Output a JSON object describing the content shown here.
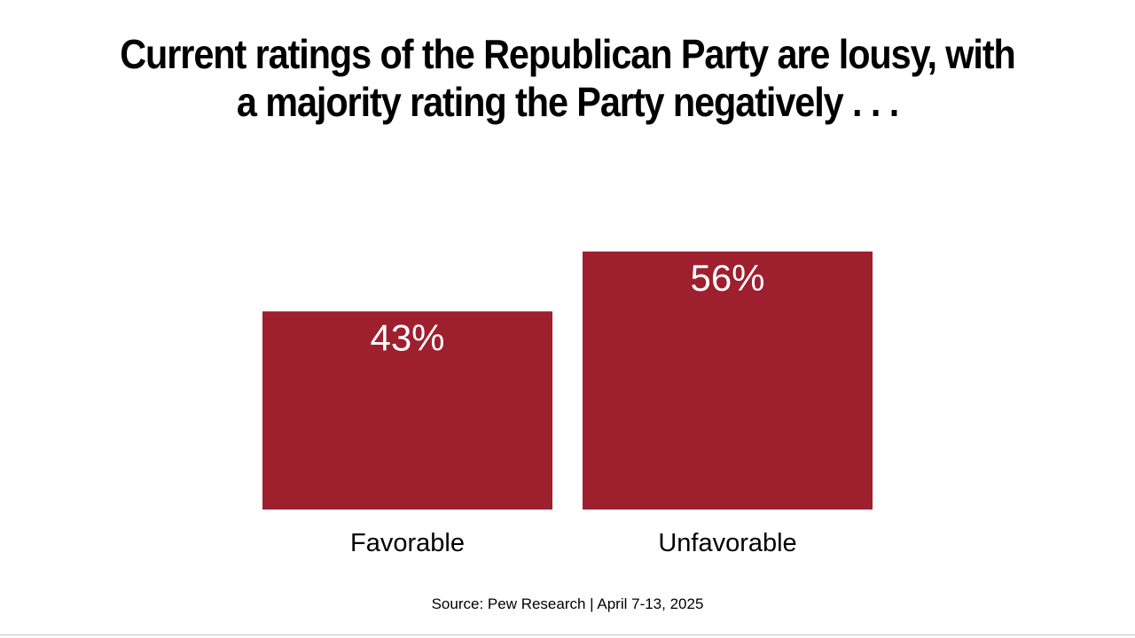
{
  "colors": {
    "bar": "#9e1f2e",
    "value_text": "#ffffff",
    "label_text": "#000000"
  },
  "chart_data": {
    "type": "bar",
    "title": "Current ratings of the Republican Party are lousy, with a majority rating the Party negatively . . .",
    "title_lines": [
      "Current ratings of the Republican Party are lousy, with",
      "a majority rating the Party negatively . . ."
    ],
    "categories": [
      "Favorable",
      "Unfavorable"
    ],
    "values": [
      43,
      56
    ],
    "value_labels": [
      "43%",
      "56%"
    ],
    "xlabel": "",
    "ylabel": "",
    "ylim": [
      0,
      100
    ],
    "grid": false,
    "source": "Source: Pew Research | April 7-13, 2025"
  }
}
